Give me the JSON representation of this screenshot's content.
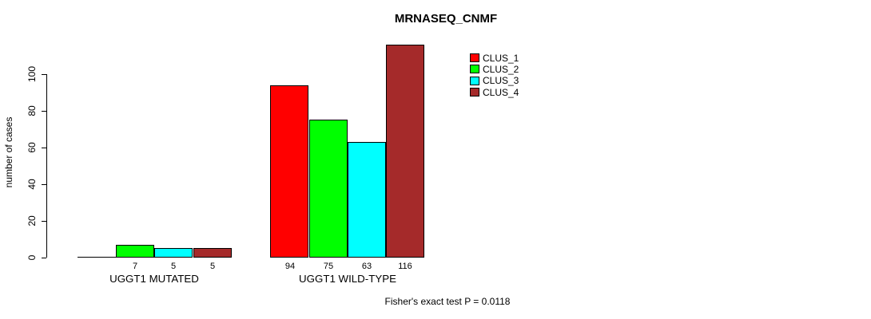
{
  "title": "MRNASEQ_CNMF",
  "footer_note": "Fisher's exact test P = 0.0118",
  "y_axis": {
    "label": "number of cases",
    "ticks": [
      0,
      20,
      40,
      60,
      80,
      100
    ]
  },
  "chart_data": {
    "type": "bar",
    "title": "MRNASEQ_CNMF",
    "xlabel": "",
    "ylabel": "number of cases",
    "categories": [
      "UGGT1 MUTATED",
      "UGGT1 WILD-TYPE"
    ],
    "series": [
      {
        "name": "CLUS_1",
        "color": "#ff0000",
        "values": [
          0,
          94
        ]
      },
      {
        "name": "CLUS_2",
        "color": "#00ff00",
        "values": [
          7,
          75
        ]
      },
      {
        "name": "CLUS_3",
        "color": "#00ffff",
        "values": [
          5,
          63
        ]
      },
      {
        "name": "CLUS_4",
        "color": "#a52a2a",
        "values": [
          5,
          116
        ]
      }
    ],
    "bar_value_labels": [
      [
        "",
        "7",
        "5",
        "5"
      ],
      [
        "94",
        "75",
        "63",
        "116"
      ]
    ],
    "hide_zero_value_labels": true,
    "ylim": [
      0,
      116
    ],
    "yticks": [
      0,
      20,
      40,
      60,
      80,
      100
    ],
    "grid": false,
    "legend_position": "upper-middle-right-inside",
    "annotation": "Fisher's exact test P = 0.0118"
  }
}
